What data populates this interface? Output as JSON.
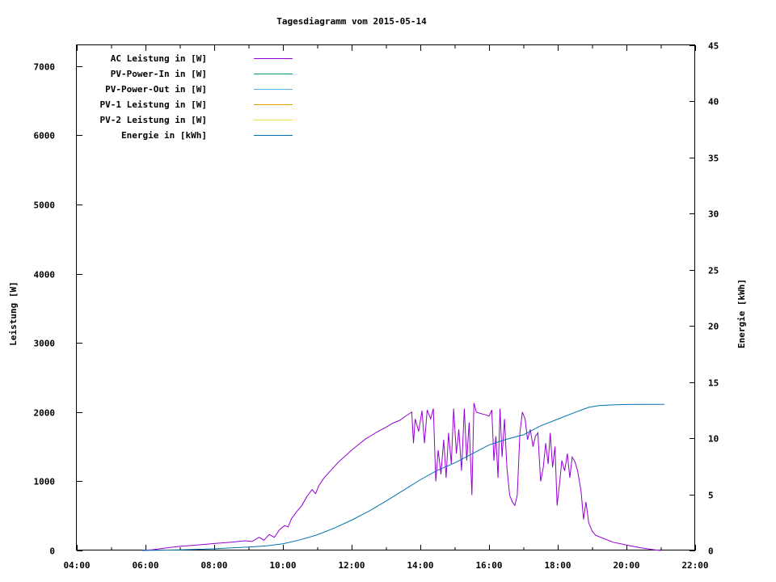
{
  "chart_data": {
    "type": "line",
    "title": "Tagesdiagramm vom 2015-05-14",
    "ylabel": "Leistung [W]",
    "y2label": "Energie [kWh]",
    "xlim_hours": [
      4,
      22
    ],
    "ylim": [
      0,
      7300
    ],
    "y2lim": [
      0,
      45
    ],
    "x_ticks": [
      "04:00",
      "06:00",
      "08:00",
      "10:00",
      "12:00",
      "14:00",
      "16:00",
      "18:00",
      "20:00",
      "22:00"
    ],
    "y_ticks": [
      "0",
      "1000",
      "2000",
      "3000",
      "4000",
      "5000",
      "6000",
      "7000"
    ],
    "y2_ticks": [
      "0",
      "5",
      "10",
      "15",
      "20",
      "25",
      "30",
      "35",
      "40",
      "45"
    ],
    "legend_position": "top-left",
    "series": [
      {
        "name": "AC Leistung in [W]",
        "color": "#9400d3",
        "axis": "y",
        "points": [
          [
            5.9,
            0
          ],
          [
            6.2,
            10
          ],
          [
            6.5,
            30
          ],
          [
            7.0,
            60
          ],
          [
            7.5,
            80
          ],
          [
            8.0,
            100
          ],
          [
            8.5,
            120
          ],
          [
            8.9,
            140
          ],
          [
            9.1,
            130
          ],
          [
            9.3,
            190
          ],
          [
            9.45,
            150
          ],
          [
            9.6,
            230
          ],
          [
            9.75,
            190
          ],
          [
            9.9,
            300
          ],
          [
            10.05,
            360
          ],
          [
            10.15,
            340
          ],
          [
            10.25,
            460
          ],
          [
            10.4,
            560
          ],
          [
            10.55,
            650
          ],
          [
            10.7,
            780
          ],
          [
            10.85,
            880
          ],
          [
            10.95,
            820
          ],
          [
            11.05,
            940
          ],
          [
            11.2,
            1050
          ],
          [
            11.4,
            1160
          ],
          [
            11.6,
            1270
          ],
          [
            11.8,
            1360
          ],
          [
            12.0,
            1450
          ],
          [
            12.2,
            1530
          ],
          [
            12.4,
            1610
          ],
          [
            12.6,
            1670
          ],
          [
            12.8,
            1730
          ],
          [
            13.0,
            1780
          ],
          [
            13.2,
            1840
          ],
          [
            13.4,
            1880
          ],
          [
            13.6,
            1950
          ],
          [
            13.75,
            2000
          ],
          [
            13.8,
            1550
          ],
          [
            13.85,
            1900
          ],
          [
            13.95,
            1720
          ],
          [
            14.05,
            2020
          ],
          [
            14.12,
            1550
          ],
          [
            14.2,
            2030
          ],
          [
            14.3,
            1900
          ],
          [
            14.38,
            2050
          ],
          [
            14.45,
            1000
          ],
          [
            14.52,
            1450
          ],
          [
            14.6,
            1100
          ],
          [
            14.68,
            1600
          ],
          [
            14.75,
            1050
          ],
          [
            14.82,
            1700
          ],
          [
            14.9,
            1250
          ],
          [
            14.97,
            2050
          ],
          [
            15.05,
            1400
          ],
          [
            15.12,
            1750
          ],
          [
            15.2,
            1150
          ],
          [
            15.28,
            2050
          ],
          [
            15.35,
            1300
          ],
          [
            15.42,
            1850
          ],
          [
            15.5,
            800
          ],
          [
            15.56,
            2130
          ],
          [
            15.63,
            2000
          ],
          [
            15.75,
            1980
          ],
          [
            15.9,
            1960
          ],
          [
            16.0,
            1940
          ],
          [
            16.08,
            2030
          ],
          [
            16.14,
            1300
          ],
          [
            16.2,
            1650
          ],
          [
            16.26,
            1050
          ],
          [
            16.32,
            2050
          ],
          [
            16.38,
            1350
          ],
          [
            16.45,
            1900
          ],
          [
            16.52,
            1200
          ],
          [
            16.6,
            800
          ],
          [
            16.68,
            700
          ],
          [
            16.75,
            650
          ],
          [
            16.82,
            800
          ],
          [
            16.9,
            1700
          ],
          [
            16.97,
            2000
          ],
          [
            17.05,
            1900
          ],
          [
            17.12,
            1600
          ],
          [
            17.2,
            1750
          ],
          [
            17.28,
            1500
          ],
          [
            17.35,
            1650
          ],
          [
            17.42,
            1700
          ],
          [
            17.5,
            1000
          ],
          [
            17.58,
            1200
          ],
          [
            17.65,
            1550
          ],
          [
            17.72,
            1250
          ],
          [
            17.78,
            1700
          ],
          [
            17.85,
            1200
          ],
          [
            17.92,
            1500
          ],
          [
            17.98,
            650
          ],
          [
            18.05,
            950
          ],
          [
            18.12,
            1300
          ],
          [
            18.2,
            1150
          ],
          [
            18.28,
            1400
          ],
          [
            18.35,
            1050
          ],
          [
            18.42,
            1350
          ],
          [
            18.5,
            1280
          ],
          [
            18.58,
            1150
          ],
          [
            18.68,
            850
          ],
          [
            18.75,
            450
          ],
          [
            18.82,
            700
          ],
          [
            18.9,
            400
          ],
          [
            19.0,
            280
          ],
          [
            19.1,
            220
          ],
          [
            19.3,
            180
          ],
          [
            19.6,
            120
          ],
          [
            20.0,
            80
          ],
          [
            20.4,
            40
          ],
          [
            20.8,
            10
          ],
          [
            21.0,
            0
          ]
        ]
      },
      {
        "name": "PV-Power-In in [W]",
        "color": "#009e73",
        "axis": "y",
        "points": []
      },
      {
        "name": "PV-Power-Out in [W]",
        "color": "#56b4e9",
        "axis": "y",
        "points": []
      },
      {
        "name": "PV-1 Leistung in [W]",
        "color": "#e69f00",
        "axis": "y",
        "points": []
      },
      {
        "name": "PV-2 Leistung in [W]",
        "color": "#f0e442",
        "axis": "y",
        "points": []
      },
      {
        "name": "Energie in [kWh]",
        "color": "#0072b2",
        "axis": "y2",
        "points": [
          [
            5.9,
            0
          ],
          [
            7.0,
            0.05
          ],
          [
            8.0,
            0.15
          ],
          [
            9.0,
            0.3
          ],
          [
            9.5,
            0.4
          ],
          [
            10.0,
            0.6
          ],
          [
            10.5,
            0.95
          ],
          [
            11.0,
            1.4
          ],
          [
            11.5,
            2.0
          ],
          [
            12.0,
            2.7
          ],
          [
            12.5,
            3.5
          ],
          [
            13.0,
            4.4
          ],
          [
            13.5,
            5.35
          ],
          [
            14.0,
            6.3
          ],
          [
            14.5,
            7.15
          ],
          [
            15.0,
            7.8
          ],
          [
            15.5,
            8.6
          ],
          [
            16.0,
            9.4
          ],
          [
            16.5,
            9.9
          ],
          [
            17.0,
            10.3
          ],
          [
            17.5,
            11.1
          ],
          [
            18.0,
            11.7
          ],
          [
            18.5,
            12.3
          ],
          [
            18.9,
            12.75
          ],
          [
            19.2,
            12.9
          ],
          [
            19.6,
            12.97
          ],
          [
            20.0,
            13.0
          ],
          [
            20.5,
            13.02
          ],
          [
            21.1,
            13.02
          ]
        ]
      }
    ]
  }
}
